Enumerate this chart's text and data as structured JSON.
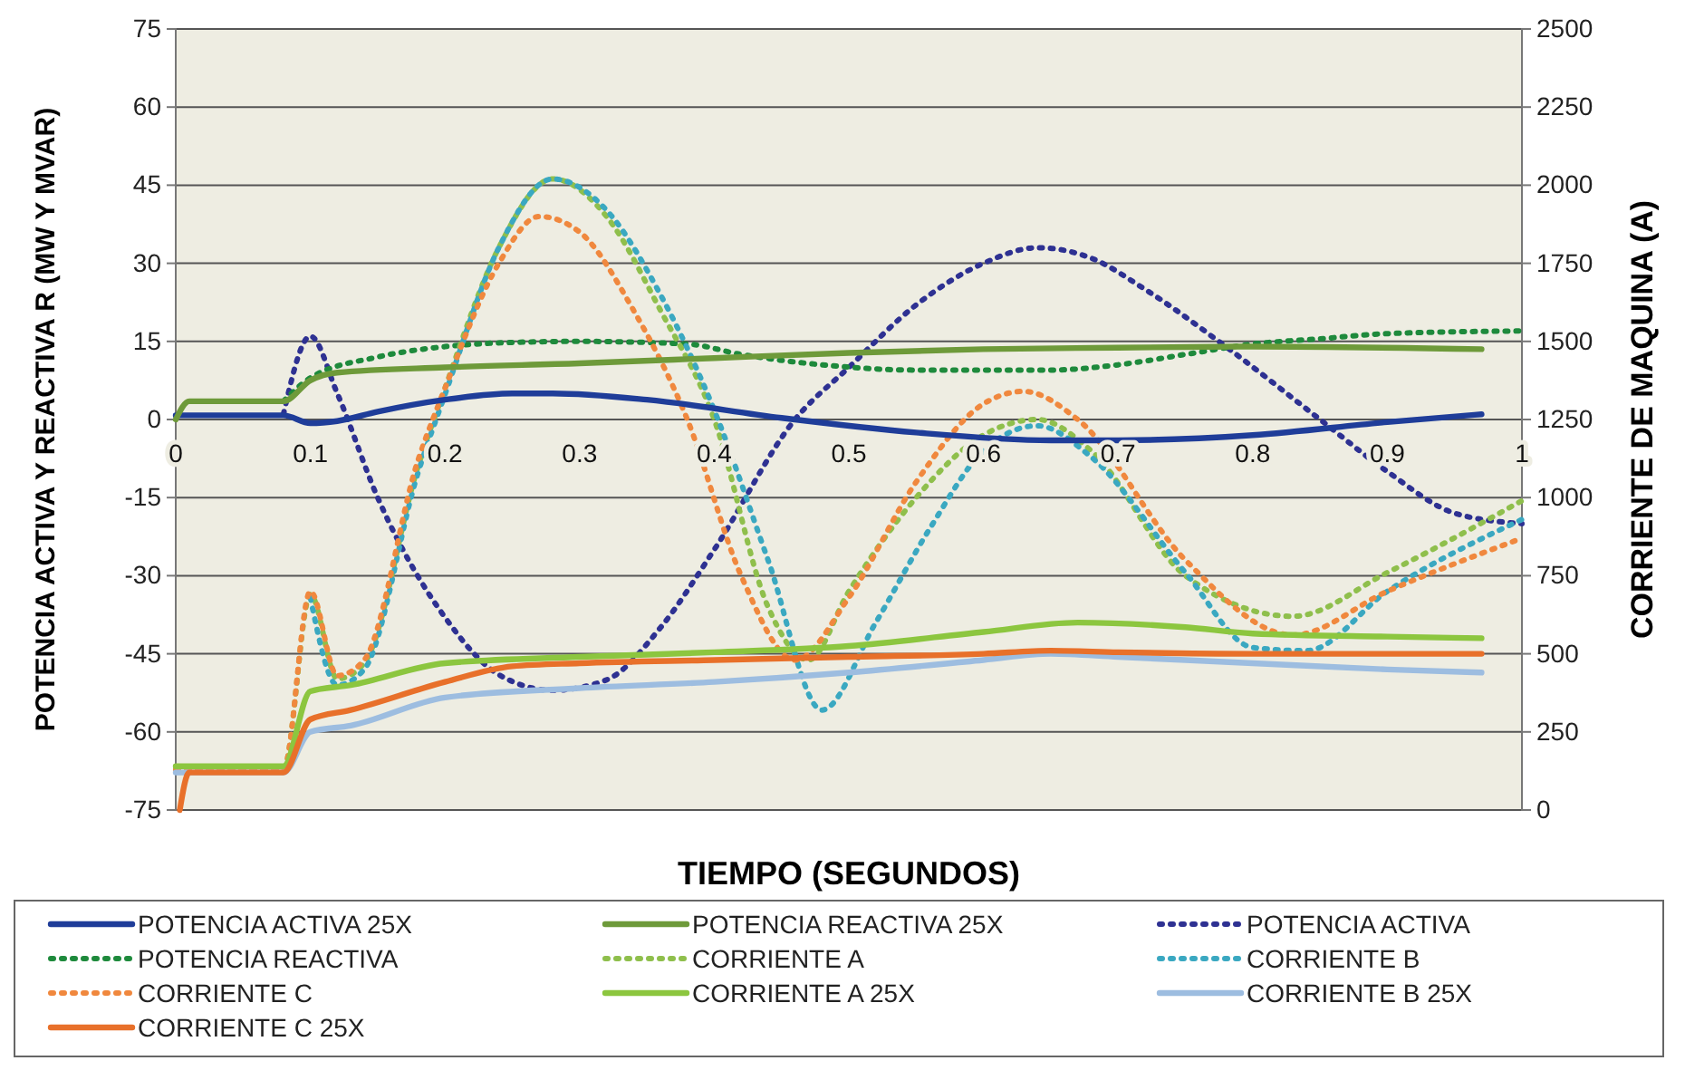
{
  "chart_data": {
    "type": "line",
    "xlabel": "TIEMPO (SEGUNDOS)",
    "ylabel": "POTENCIA ACTIVA Y REACTIVA R (MW Y MVAR)",
    "y2label": "CORRIENTE DE MAQUINA  (A)",
    "xlim": [
      0,
      1
    ],
    "xticks": [
      0,
      0.1,
      0.2,
      0.3,
      0.4,
      0.5,
      0.6,
      0.7,
      0.8,
      0.9,
      1
    ],
    "ylim": [
      -75,
      75
    ],
    "yticks": [
      -75,
      -60,
      -45,
      -30,
      -15,
      0,
      15,
      30,
      45,
      60,
      75
    ],
    "y2lim": [
      0,
      2500
    ],
    "y2ticks": [
      0,
      250,
      500,
      750,
      1000,
      1250,
      1500,
      1750,
      2000,
      2250,
      2500
    ],
    "grid": "y",
    "legend": "bottom",
    "marker": "none",
    "series": [
      {
        "name": "POTENCIA ACTIVA 25X",
        "color": "#1f3d99",
        "line_style": "solid",
        "x": [
          0,
          0.08,
          0.1,
          0.12,
          0.15,
          0.2,
          0.25,
          0.28,
          0.35,
          0.45,
          0.55,
          0.65,
          0.7,
          0.8,
          0.9,
          0.97
        ],
        "values": [
          0.8,
          0.8,
          -0.7,
          -0.3,
          1.5,
          3.8,
          5,
          5,
          3.8,
          0.3,
          -2.5,
          -4,
          -4,
          -3,
          -0.5,
          1
        ]
      },
      {
        "name": "POTENCIA REACTIVA 25X",
        "color": "#6e9a3a",
        "line_style": "solid",
        "x": [
          0,
          0.01,
          0.08,
          0.1,
          0.12,
          0.2,
          0.3,
          0.4,
          0.5,
          0.6,
          0.7,
          0.8,
          0.97
        ],
        "values": [
          0,
          3.5,
          3.5,
          7.5,
          9,
          10,
          10.8,
          11.8,
          12.8,
          13.5,
          13.8,
          14,
          13.5
        ]
      },
      {
        "name": "POTENCIA ACTIVA",
        "color": "#2e3192",
        "line_style": "dotted",
        "x": [
          0.08,
          0.1,
          0.12,
          0.15,
          0.2,
          0.24,
          0.28,
          0.32,
          0.36,
          0.4,
          0.46,
          0.5,
          0.55,
          0.6,
          0.64,
          0.68,
          0.72,
          0.78,
          0.85,
          0.9,
          0.95,
          1
        ],
        "values": [
          1,
          16,
          5,
          -15,
          -38,
          -49,
          -52,
          -50,
          -40,
          -25,
          0,
          10,
          22,
          30,
          33,
          31,
          25,
          14,
          0,
          -10,
          -18,
          -20
        ]
      },
      {
        "name": "POTENCIA REACTIVA",
        "color": "#1e8a3c",
        "line_style": "dotted",
        "x": [
          0.08,
          0.1,
          0.15,
          0.2,
          0.25,
          0.3,
          0.38,
          0.42,
          0.48,
          0.55,
          0.65,
          0.7,
          0.75,
          0.8,
          0.85,
          0.9,
          1
        ],
        "values": [
          3.5,
          8,
          12,
          14,
          14.8,
          15,
          14.5,
          12.5,
          10.5,
          9.5,
          9.5,
          10.5,
          12.5,
          14.5,
          15.5,
          16.5,
          17
        ]
      },
      {
        "name": "CORRIENTE A",
        "color": "#8fbf4c",
        "axis": "y2",
        "line_style": "dotted",
        "x": [
          0,
          0.08,
          0.1,
          0.12,
          0.14,
          0.18,
          0.2,
          0.24,
          0.28,
          0.32,
          0.36,
          0.4,
          0.44,
          0.47,
          0.5,
          0.55,
          0.6,
          0.64,
          0.68,
          0.75,
          0.83,
          0.9,
          1
        ],
        "values": [
          130,
          130,
          690,
          420,
          470,
          1100,
          1350,
          1800,
          2020,
          1900,
          1600,
          1250,
          650,
          480,
          700,
          1000,
          1200,
          1250,
          1150,
          750,
          620,
          760,
          990
        ]
      },
      {
        "name": "CORRIENTE B",
        "color": "#3aa8c1",
        "axis": "y2",
        "line_style": "dotted",
        "x": [
          0.1,
          0.12,
          0.14,
          0.18,
          0.2,
          0.24,
          0.28,
          0.32,
          0.36,
          0.4,
          0.44,
          0.48,
          0.52,
          0.56,
          0.6,
          0.64,
          0.68,
          0.75,
          0.8,
          0.84,
          0.9,
          1
        ],
        "values": [
          680,
          400,
          450,
          1080,
          1330,
          1800,
          2020,
          1920,
          1650,
          1280,
          800,
          320,
          600,
          900,
          1150,
          1230,
          1130,
          760,
          520,
          510,
          700,
          930
        ]
      },
      {
        "name": "CORRIENTE C",
        "color": "#f0883e",
        "axis": "y2",
        "line_style": "dotted",
        "x": [
          0,
          0.08,
          0.1,
          0.12,
          0.14,
          0.18,
          0.2,
          0.24,
          0.27,
          0.3,
          0.34,
          0.38,
          0.42,
          0.46,
          0.5,
          0.55,
          0.6,
          0.63,
          0.67,
          0.75,
          0.83,
          0.9,
          1
        ],
        "values": [
          130,
          130,
          700,
          430,
          480,
          1120,
          1350,
          1750,
          1900,
          1850,
          1600,
          1250,
          750,
          480,
          680,
          1050,
          1300,
          1340,
          1250,
          800,
          560,
          700,
          870
        ]
      },
      {
        "name": "CORRIENTE A 25X",
        "color": "#8cc63f",
        "axis": "y2",
        "line_style": "solid",
        "x": [
          0,
          0.08,
          0.1,
          0.13,
          0.2,
          0.3,
          0.4,
          0.5,
          0.6,
          0.67,
          0.75,
          0.8,
          0.9,
          0.97
        ],
        "values": [
          140,
          140,
          380,
          400,
          470,
          490,
          505,
          525,
          570,
          600,
          585,
          565,
          555,
          550
        ]
      },
      {
        "name": "CORRIENTE B 25X",
        "color": "#9dbde0",
        "axis": "y2",
        "line_style": "solid",
        "x": [
          0,
          0.08,
          0.1,
          0.13,
          0.2,
          0.3,
          0.4,
          0.5,
          0.6,
          0.65,
          0.7,
          0.8,
          0.9,
          0.97
        ],
        "values": [
          120,
          120,
          250,
          270,
          360,
          390,
          410,
          440,
          480,
          500,
          490,
          470,
          450,
          440
        ]
      },
      {
        "name": "CORRIENTE C 25X",
        "color": "#e8702a",
        "axis": "y2",
        "line_style": "solid",
        "x": [
          0.003,
          0.01,
          0.08,
          0.1,
          0.13,
          0.2,
          0.25,
          0.3,
          0.4,
          0.5,
          0.6,
          0.65,
          0.7,
          0.8,
          0.9,
          0.97
        ],
        "values": [
          0,
          120,
          120,
          290,
          320,
          410,
          460,
          470,
          480,
          490,
          500,
          510,
          505,
          500,
          500,
          500
        ]
      }
    ]
  }
}
